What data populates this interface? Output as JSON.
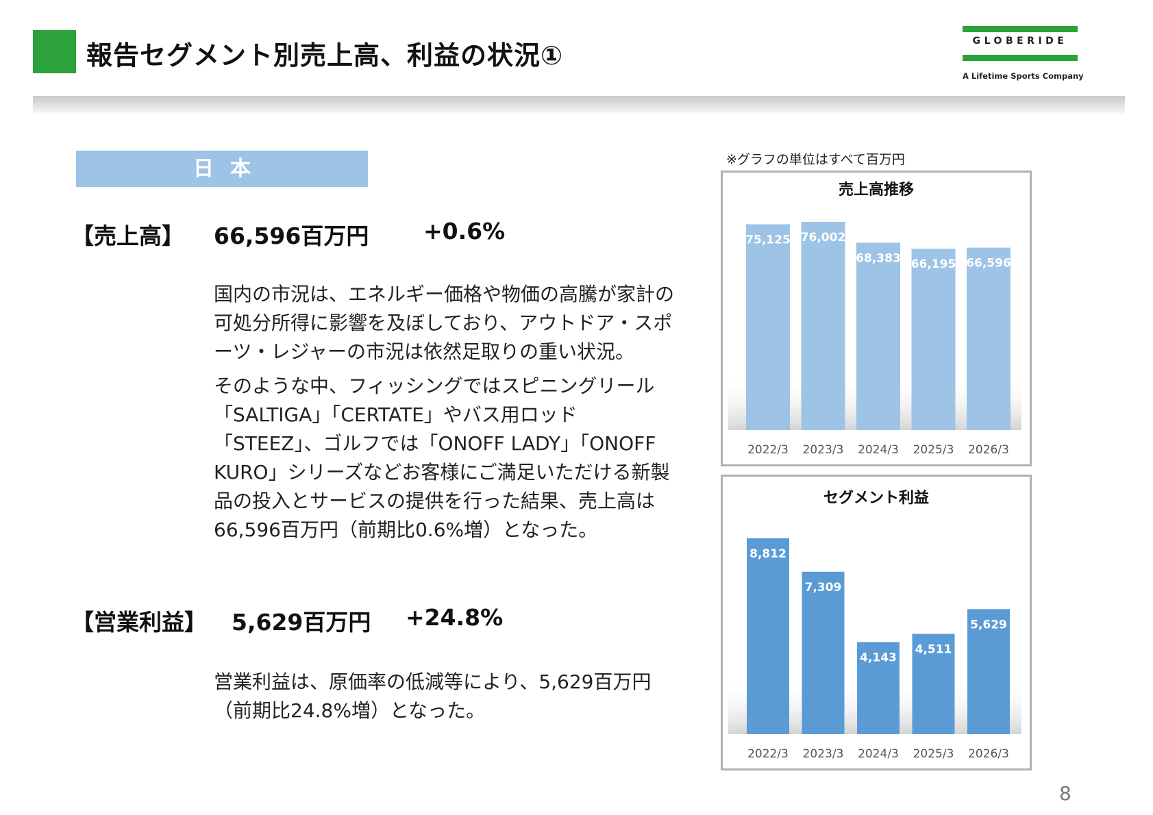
{
  "header": {
    "title": "報告セグメント別売上高、利益の状況①",
    "accent_color": "#2ba23c"
  },
  "logo": {
    "wordmark": "GLOBERIDE",
    "tagline": "A Lifetime Sports Company"
  },
  "region": {
    "label": "日本"
  },
  "sales": {
    "label": "【売上高】",
    "value": "66,596百万円",
    "change": "+0.6%",
    "paragraphs": [
      "国内の市況は、エネルギー価格や物価の高騰が家計の可処分所得に影響を及ぼしており、アウトドア・スポーツ・レジャーの市況は依然足取りの重い状況。",
      "そのような中、フィッシングではスピニングリール「SALTIGA」「CERTATE」やバス用ロッド「STEEZ」、ゴルフでは「ONOFF LADY」「ONOFF KURO」シリーズなどお客様にご満足いただける新製品の投入とサービスの提供を行った結果、売上高は66,596百万円（前期比0.6%増）となった。"
    ]
  },
  "profit": {
    "label": "【営業利益】",
    "value": "5,629百万円",
    "change": "+24.8%",
    "paragraphs": [
      "営業利益は、原価率の低減等により、5,629百万円（前期比24.8%増）となった。"
    ]
  },
  "note": "※グラフの単位はすべて百万円",
  "page_number": "8",
  "chart_data": [
    {
      "type": "bar",
      "title": "売上高推移",
      "categories": [
        "2022/3",
        "2023/3",
        "2024/3",
        "2025/3",
        "2026/3"
      ],
      "values": [
        75125,
        76002,
        68383,
        66195,
        66596
      ],
      "value_labels": [
        "75,125",
        "76,002",
        "68,383",
        "66,195",
        "66,596"
      ],
      "ylim": [
        0,
        76002
      ],
      "color": "#9dc3e6",
      "grid": false,
      "legend": "none"
    },
    {
      "type": "bar",
      "title": "セグメント利益",
      "categories": [
        "2022/3",
        "2023/3",
        "2024/3",
        "2025/3",
        "2026/3"
      ],
      "values": [
        8812,
        7309,
        4143,
        4511,
        5629
      ],
      "value_labels": [
        "8,812",
        "7,309",
        "4,143",
        "4,511",
        "5,629"
      ],
      "ylim": [
        0,
        8812
      ],
      "color": "#5b9bd5",
      "grid": false,
      "legend": "none"
    }
  ]
}
